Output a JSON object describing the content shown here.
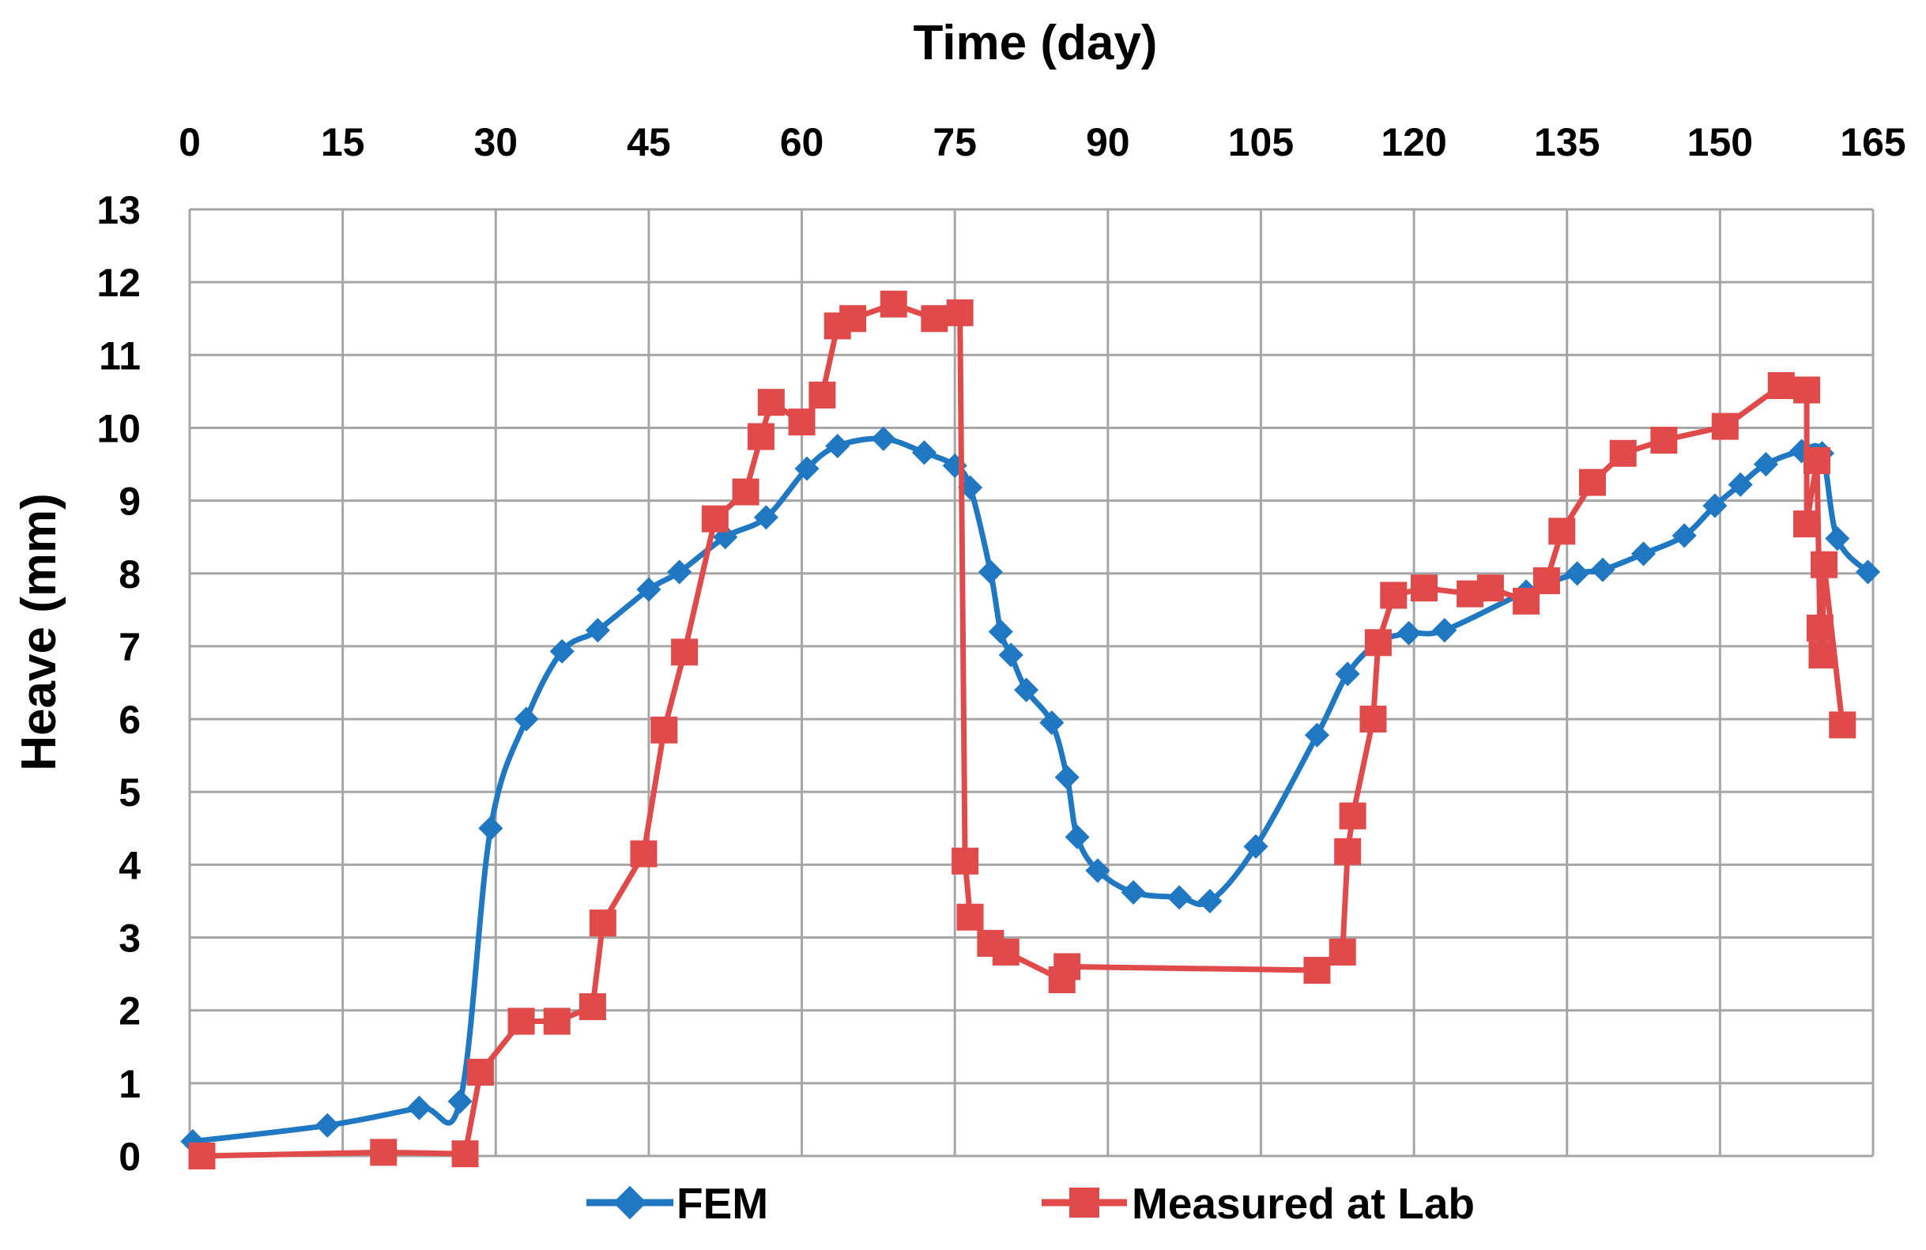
{
  "chart_data": {
    "type": "line",
    "title": "",
    "xlabel": "Time (day)",
    "ylabel": "Heave (mm)",
    "x_axis_position": "top",
    "xlim": [
      0,
      165
    ],
    "ylim": [
      0,
      13
    ],
    "xticks": [
      0,
      15,
      30,
      45,
      60,
      75,
      90,
      105,
      120,
      135,
      150,
      165
    ],
    "yticks": [
      0,
      1,
      2,
      3,
      4,
      5,
      6,
      7,
      8,
      9,
      10,
      11,
      12,
      13
    ],
    "grid": true,
    "legend_position": "bottom",
    "series": [
      {
        "name": "FEM",
        "color": "#1f78c1",
        "marker": "diamond",
        "points": [
          [
            0.3,
            0.2
          ],
          [
            13.5,
            0.42
          ],
          [
            22.5,
            0.66
          ],
          [
            26.5,
            0.75
          ],
          [
            29.5,
            4.5
          ],
          [
            33,
            6.0
          ],
          [
            36.5,
            6.93
          ],
          [
            40,
            7.22
          ],
          [
            45,
            7.78
          ],
          [
            48,
            8.02
          ],
          [
            52.5,
            8.5
          ],
          [
            56.5,
            8.77
          ],
          [
            60.5,
            9.44
          ],
          [
            63.5,
            9.75
          ],
          [
            68,
            9.85
          ],
          [
            72,
            9.66
          ],
          [
            75,
            9.48
          ],
          [
            76.5,
            9.18
          ],
          [
            78.5,
            8.02
          ],
          [
            79.5,
            7.2
          ],
          [
            80.5,
            6.88
          ],
          [
            82,
            6.4
          ],
          [
            84.5,
            5.95
          ],
          [
            86,
            5.2
          ],
          [
            87,
            4.38
          ],
          [
            89,
            3.92
          ],
          [
            92.5,
            3.62
          ],
          [
            97,
            3.55
          ],
          [
            100,
            3.5
          ],
          [
            104.5,
            4.25
          ],
          [
            110.5,
            5.78
          ],
          [
            113.5,
            6.62
          ],
          [
            116.5,
            7.05
          ],
          [
            119.5,
            7.18
          ],
          [
            123,
            7.22
          ],
          [
            131,
            7.75
          ],
          [
            136,
            8.0
          ],
          [
            138.5,
            8.05
          ],
          [
            142.5,
            8.27
          ],
          [
            146.5,
            8.52
          ],
          [
            149.5,
            8.93
          ],
          [
            152,
            9.22
          ],
          [
            154.5,
            9.5
          ],
          [
            158,
            9.68
          ],
          [
            160,
            9.65
          ],
          [
            161.5,
            8.48
          ],
          [
            164.5,
            8.02
          ]
        ]
      },
      {
        "name": "Measured at Lab",
        "color": "#e04a4a",
        "marker": "square",
        "points": [
          [
            1.2,
            0.0
          ],
          [
            19,
            0.05
          ],
          [
            27,
            0.03
          ],
          [
            28.5,
            1.15
          ],
          [
            32.5,
            1.85
          ],
          [
            36,
            1.85
          ],
          [
            39.5,
            2.05
          ],
          [
            40.5,
            3.2
          ],
          [
            44.5,
            4.15
          ],
          [
            46.5,
            5.85
          ],
          [
            48.5,
            6.92
          ],
          [
            51.5,
            8.75
          ],
          [
            54.5,
            9.12
          ],
          [
            56,
            9.88
          ],
          [
            57,
            10.35
          ],
          [
            60,
            10.08
          ],
          [
            62,
            10.45
          ],
          [
            63.5,
            11.4
          ],
          [
            65,
            11.5
          ],
          [
            69,
            11.7
          ],
          [
            73,
            11.5
          ],
          [
            75.5,
            11.58
          ],
          [
            76,
            4.05
          ],
          [
            76.5,
            3.28
          ],
          [
            78.5,
            2.92
          ],
          [
            80,
            2.8
          ],
          [
            85.5,
            2.42
          ],
          [
            86,
            2.6
          ],
          [
            110.5,
            2.55
          ],
          [
            113,
            2.8
          ],
          [
            113.5,
            4.18
          ],
          [
            114,
            4.67
          ],
          [
            116,
            6.0
          ],
          [
            116.5,
            7.05
          ],
          [
            118,
            7.7
          ],
          [
            121,
            7.8
          ],
          [
            125.5,
            7.72
          ],
          [
            127.5,
            7.8
          ],
          [
            131,
            7.62
          ],
          [
            133,
            7.9
          ],
          [
            134.5,
            8.58
          ],
          [
            137.5,
            9.25
          ],
          [
            140.5,
            9.65
          ],
          [
            144.5,
            9.83
          ],
          [
            150.5,
            10.02
          ],
          [
            156,
            10.58
          ],
          [
            158.5,
            10.52
          ],
          [
            158.5,
            8.68
          ],
          [
            159.5,
            9.55
          ],
          [
            159.8,
            7.25
          ],
          [
            160,
            6.88
          ],
          [
            160.2,
            8.12
          ],
          [
            162,
            5.92
          ]
        ]
      }
    ]
  }
}
